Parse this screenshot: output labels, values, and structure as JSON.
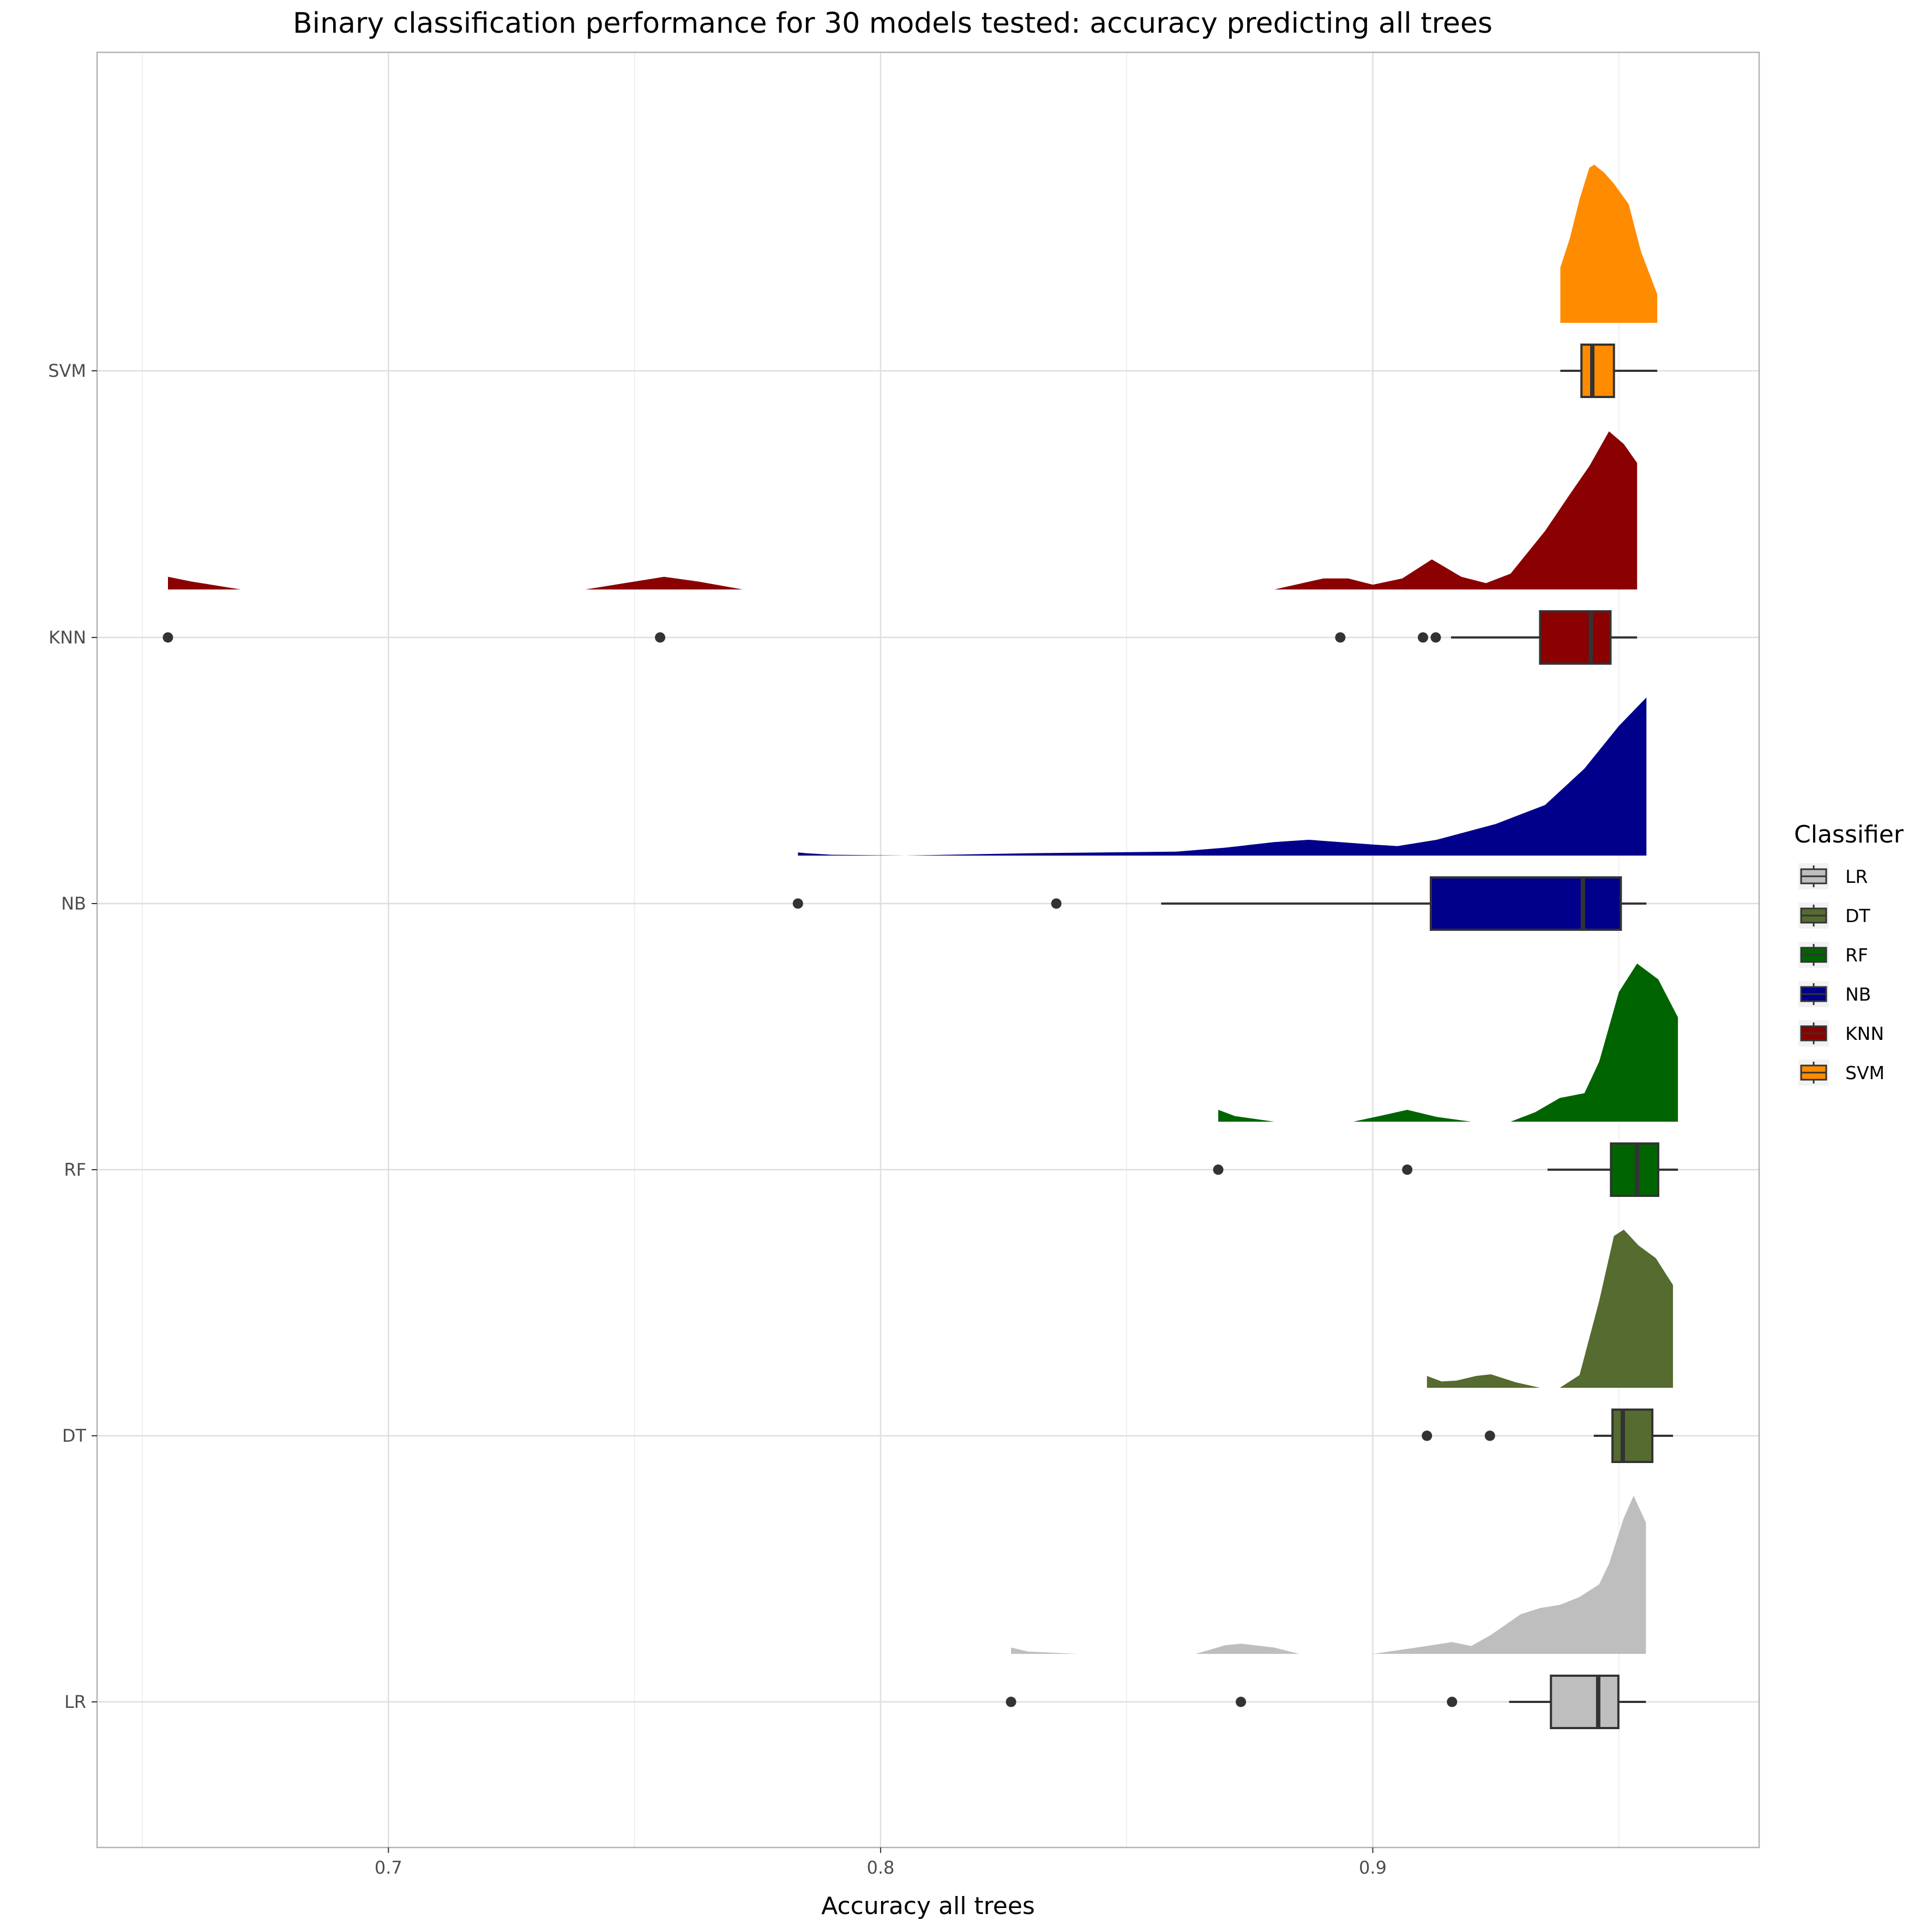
{
  "chart_data": {
    "type": "raincloud",
    "title": "Binary classification performance for 30 models tested: accuracy predicting all trees",
    "xlabel": "Accuracy all trees",
    "ylabel": "",
    "xlim": [
      0.6408,
      0.9785
    ],
    "x_ticks": [
      0.7,
      0.8,
      0.9
    ],
    "x_tick_labels": [
      "0.7",
      "0.8",
      "0.9"
    ],
    "x_minor_ticks": [
      0.65,
      0.75,
      0.85,
      0.95
    ],
    "grid": true,
    "legend": {
      "title": "Classifier",
      "position": "right"
    },
    "categories": [
      "LR",
      "DT",
      "RF",
      "NB",
      "KNN",
      "SVM"
    ],
    "series": [
      {
        "name": "LR",
        "color": "#bebebe",
        "box": {
          "whisker_low": 0.9277,
          "q1": 0.9362,
          "median": 0.9458,
          "q3": 0.9499,
          "whisker_high": 0.9555
        },
        "outliers": [
          0.8265,
          0.8732,
          0.9161
        ],
        "density": [
          [
            0.8265,
            0.04
          ],
          [
            0.83,
            0.015
          ],
          [
            0.84,
            0.0
          ],
          [
            0.864,
            0.0
          ],
          [
            0.87,
            0.055
          ],
          [
            0.8732,
            0.065
          ],
          [
            0.88,
            0.04
          ],
          [
            0.885,
            0.0
          ],
          [
            0.9,
            0.0
          ],
          [
            0.91,
            0.045
          ],
          [
            0.9161,
            0.075
          ],
          [
            0.92,
            0.05
          ],
          [
            0.924,
            0.12
          ],
          [
            0.93,
            0.25
          ],
          [
            0.934,
            0.29
          ],
          [
            0.938,
            0.31
          ],
          [
            0.942,
            0.36
          ],
          [
            0.946,
            0.44
          ],
          [
            0.948,
            0.57
          ],
          [
            0.951,
            0.86
          ],
          [
            0.953,
            1.0
          ],
          [
            0.9555,
            0.83
          ],
          [
            0.9555,
            0.0
          ]
        ]
      },
      {
        "name": "DT",
        "color": "#556b2f",
        "box": {
          "whisker_low": 0.9449,
          "q1": 0.9487,
          "median": 0.9508,
          "q3": 0.9568,
          "whisker_high": 0.961
        },
        "outliers": [
          0.911,
          0.9238
        ],
        "density": [
          [
            0.911,
            0.075
          ],
          [
            0.914,
            0.04
          ],
          [
            0.917,
            0.045
          ],
          [
            0.921,
            0.075
          ],
          [
            0.924,
            0.085
          ],
          [
            0.929,
            0.035
          ],
          [
            0.934,
            0.0
          ],
          [
            0.938,
            0.0
          ],
          [
            0.942,
            0.08
          ],
          [
            0.946,
            0.55
          ],
          [
            0.949,
            0.96
          ],
          [
            0.951,
            1.0
          ],
          [
            0.954,
            0.9
          ],
          [
            0.9575,
            0.82
          ],
          [
            0.961,
            0.65
          ],
          [
            0.961,
            0.0
          ]
        ]
      },
      {
        "name": "RF",
        "color": "#006400",
        "box": {
          "whisker_low": 0.9355,
          "q1": 0.9484,
          "median": 0.9537,
          "q3": 0.958,
          "whisker_high": 0.962
        },
        "outliers": [
          0.8686,
          0.907
        ],
        "density": [
          [
            0.8686,
            0.075
          ],
          [
            0.872,
            0.035
          ],
          [
            0.88,
            0.0
          ],
          [
            0.896,
            0.0
          ],
          [
            0.902,
            0.04
          ],
          [
            0.907,
            0.075
          ],
          [
            0.913,
            0.03
          ],
          [
            0.92,
            0.0
          ],
          [
            0.928,
            0.0
          ],
          [
            0.933,
            0.06
          ],
          [
            0.938,
            0.15
          ],
          [
            0.943,
            0.18
          ],
          [
            0.946,
            0.38
          ],
          [
            0.95,
            0.82
          ],
          [
            0.9537,
            1.0
          ],
          [
            0.958,
            0.9
          ],
          [
            0.962,
            0.66
          ],
          [
            0.962,
            0.0
          ]
        ]
      },
      {
        "name": "NB",
        "color": "#00008b",
        "box": {
          "whisker_low": 0.857,
          "q1": 0.9118,
          "median": 0.9427,
          "q3": 0.9504,
          "whisker_high": 0.9556
        },
        "outliers": [
          0.7832,
          0.8357
        ],
        "density": [
          [
            0.7832,
            0.02
          ],
          [
            0.785,
            0.015
          ],
          [
            0.79,
            0.005
          ],
          [
            0.805,
            0.0
          ],
          [
            0.83,
            0.015
          ],
          [
            0.86,
            0.025
          ],
          [
            0.87,
            0.05
          ],
          [
            0.88,
            0.085
          ],
          [
            0.887,
            0.1
          ],
          [
            0.9,
            0.07
          ],
          [
            0.905,
            0.06
          ],
          [
            0.913,
            0.1
          ],
          [
            0.925,
            0.2
          ],
          [
            0.935,
            0.32
          ],
          [
            0.943,
            0.55
          ],
          [
            0.95,
            0.82
          ],
          [
            0.9556,
            1.0
          ],
          [
            0.9556,
            0.0
          ]
        ]
      },
      {
        "name": "KNN",
        "color": "#8b0000",
        "box": {
          "whisker_low": 0.9159,
          "q1": 0.934,
          "median": 0.9443,
          "q3": 0.9483,
          "whisker_high": 0.9537
        },
        "outliers": [
          0.6552,
          0.7552,
          0.8934,
          0.9102,
          0.9128
        ],
        "density": [
          [
            0.6552,
            0.08
          ],
          [
            0.66,
            0.05
          ],
          [
            0.67,
            0.0
          ],
          [
            0.74,
            0.0
          ],
          [
            0.75,
            0.05
          ],
          [
            0.756,
            0.08
          ],
          [
            0.763,
            0.05
          ],
          [
            0.772,
            0.0
          ],
          [
            0.88,
            0.0
          ],
          [
            0.89,
            0.07
          ],
          [
            0.895,
            0.07
          ],
          [
            0.9,
            0.03
          ],
          [
            0.906,
            0.07
          ],
          [
            0.912,
            0.19
          ],
          [
            0.918,
            0.08
          ],
          [
            0.923,
            0.04
          ],
          [
            0.928,
            0.1
          ],
          [
            0.935,
            0.37
          ],
          [
            0.94,
            0.6
          ],
          [
            0.944,
            0.78
          ],
          [
            0.948,
            1.0
          ],
          [
            0.951,
            0.92
          ],
          [
            0.9537,
            0.8
          ],
          [
            0.9537,
            0.0
          ]
        ]
      },
      {
        "name": "SVM",
        "color": "#ff8c00",
        "box": {
          "whisker_low": 0.9381,
          "q1": 0.9424,
          "median": 0.9446,
          "q3": 0.949,
          "whisker_high": 0.9578
        },
        "outliers": [],
        "density": [
          [
            0.9381,
            0.35
          ],
          [
            0.94,
            0.53
          ],
          [
            0.942,
            0.78
          ],
          [
            0.944,
            0.98
          ],
          [
            0.945,
            1.0
          ],
          [
            0.947,
            0.95
          ],
          [
            0.949,
            0.88
          ],
          [
            0.952,
            0.75
          ],
          [
            0.9545,
            0.45
          ],
          [
            0.9578,
            0.18
          ],
          [
            0.9578,
            0.0
          ]
        ]
      }
    ]
  }
}
